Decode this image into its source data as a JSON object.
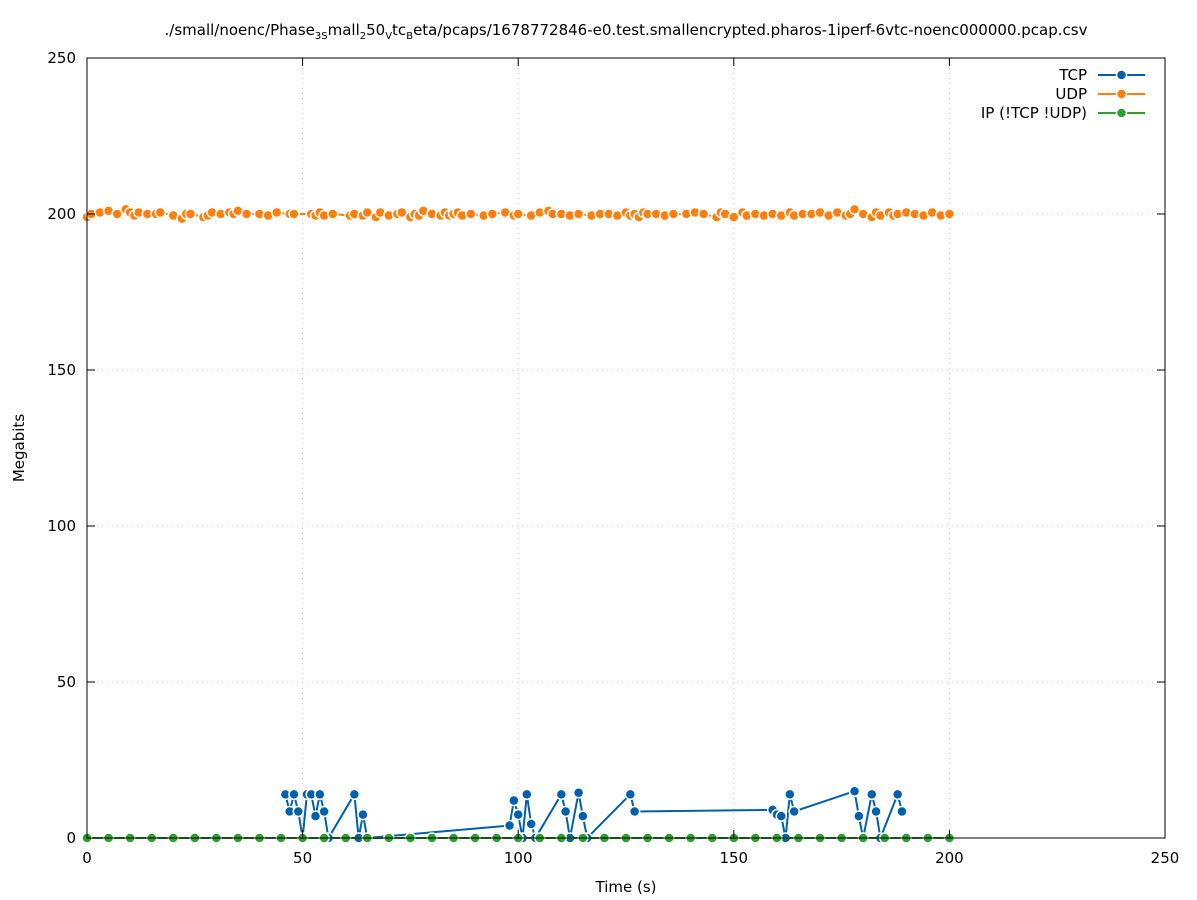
{
  "chart_data": {
    "type": "line",
    "title": {
      "parts": [
        {
          "t": "./small/noenc/Phase",
          "s": "n"
        },
        {
          "t": "3S",
          "s": "sub"
        },
        {
          "t": "mall",
          "s": "n"
        },
        {
          "t": "2",
          "s": "sub"
        },
        {
          "t": "50",
          "s": "n"
        },
        {
          "t": "V",
          "s": "sub"
        },
        {
          "t": "tc",
          "s": "n"
        },
        {
          "t": "B",
          "s": "sub"
        },
        {
          "t": "eta/pcaps/1678772846-e0.test.smallencrypted.pharos-1iperf-6vtc-noenc000000.pcap.csv",
          "s": "n"
        }
      ]
    },
    "xlabel": "Time (s)",
    "ylabel": "Megabits",
    "xlim": [
      0,
      250
    ],
    "ylim": [
      0,
      250
    ],
    "xticks": [
      0,
      50,
      100,
      150,
      200,
      250
    ],
    "yticks": [
      0,
      50,
      100,
      150,
      200,
      250
    ],
    "grid": true,
    "legend_position": "top-right",
    "series": [
      {
        "name": "TCP",
        "color": "#0060ad",
        "style": "linespoints",
        "x": [
          46,
          47,
          48,
          49,
          50,
          51,
          52,
          53,
          54,
          55,
          56,
          62,
          63,
          64,
          65,
          98,
          99,
          100,
          101,
          102,
          103,
          104,
          110,
          111,
          112,
          114,
          115,
          116,
          126,
          127,
          159,
          160,
          161,
          162,
          163,
          164,
          178,
          179,
          180,
          182,
          183,
          184,
          188,
          189
        ],
        "y": [
          14,
          8.5,
          14,
          8.5,
          0,
          14,
          14,
          7,
          14,
          8.5,
          0,
          14,
          0,
          7.5,
          0,
          4,
          12,
          7.5,
          0,
          14,
          4.5,
          0,
          14,
          8.5,
          0,
          14.5,
          7,
          0,
          14,
          8.5,
          9,
          7.5,
          7,
          0,
          14,
          8.5,
          15,
          7,
          0,
          14,
          8.5,
          0,
          14,
          8.5
        ]
      },
      {
        "name": "UDP",
        "color": "#ff7f0e",
        "style": "linespoints",
        "x": [
          0,
          1,
          3,
          5,
          7,
          9,
          10,
          11,
          12,
          14,
          16,
          17,
          20,
          22,
          23,
          24,
          27,
          28,
          29,
          31,
          33,
          34,
          35,
          37,
          40,
          42,
          44,
          47,
          48,
          52,
          53,
          54,
          55,
          57,
          61,
          62,
          64,
          65,
          67,
          68,
          70,
          72,
          73,
          75,
          76,
          77,
          78,
          80,
          82,
          83,
          84,
          85,
          86,
          87,
          89,
          92,
          94,
          97,
          99,
          100,
          103,
          105,
          107,
          108,
          110,
          112,
          114,
          117,
          119,
          121,
          123,
          125,
          126,
          127,
          128,
          129,
          130,
          132,
          134,
          136,
          139,
          141,
          143,
          146,
          147,
          148,
          150,
          152,
          153,
          155,
          157,
          159,
          161,
          163,
          164,
          166,
          168,
          170,
          172,
          174,
          176,
          177,
          178,
          180,
          182,
          183,
          184,
          186,
          187,
          188,
          190,
          192,
          194,
          196,
          198,
          200
        ],
        "y": [
          199,
          200,
          200.5,
          201,
          200,
          201.5,
          200.5,
          199.5,
          200.5,
          200,
          200,
          200.5,
          199.5,
          198.5,
          200,
          200,
          199,
          199.5,
          200.5,
          200,
          200.5,
          200,
          201,
          200,
          200,
          199.5,
          200.5,
          200,
          200,
          200,
          199.5,
          200.5,
          199.5,
          200,
          199.5,
          200,
          199.5,
          200.5,
          199,
          200.5,
          199.5,
          200,
          200.5,
          199,
          200,
          199.5,
          201,
          200,
          199.5,
          200.5,
          199.5,
          200,
          200.5,
          199.5,
          200,
          199.5,
          200,
          200.5,
          199.5,
          200,
          199.5,
          200.5,
          201,
          200,
          200,
          199.5,
          200,
          199.5,
          200,
          200,
          199.5,
          200.5,
          199.5,
          200,
          199,
          200.5,
          200,
          200,
          199.5,
          200,
          200,
          200.5,
          200,
          199,
          200.5,
          200,
          199,
          200.5,
          199.5,
          200,
          199.5,
          200,
          199.5,
          200.5,
          199.5,
          200,
          200,
          200.5,
          199.5,
          200.5,
          199.5,
          200,
          201.5,
          200,
          199,
          200.5,
          199.5,
          200.5,
          199.5,
          200,
          200.5,
          200,
          199.5,
          200.5,
          199.5,
          200
        ]
      },
      {
        "name": "IP (!TCP  !UDP)",
        "color": "#2ca02c",
        "style": "linespoints",
        "x": [
          0,
          5,
          10,
          15,
          20,
          25,
          30,
          35,
          40,
          45,
          50,
          55,
          60,
          65,
          70,
          75,
          80,
          85,
          90,
          95,
          100,
          105,
          110,
          115,
          120,
          125,
          130,
          135,
          140,
          145,
          150,
          155,
          160,
          165,
          170,
          175,
          180,
          185,
          190,
          195,
          200
        ],
        "y": [
          0,
          0,
          0,
          0,
          0,
          0,
          0,
          0,
          0,
          0,
          0,
          0,
          0,
          0,
          0,
          0,
          0,
          0,
          0,
          0,
          0,
          0,
          0,
          0,
          0,
          0,
          0,
          0,
          0,
          0,
          0,
          0,
          0,
          0,
          0,
          0,
          0,
          0,
          0,
          0,
          0
        ]
      }
    ]
  }
}
